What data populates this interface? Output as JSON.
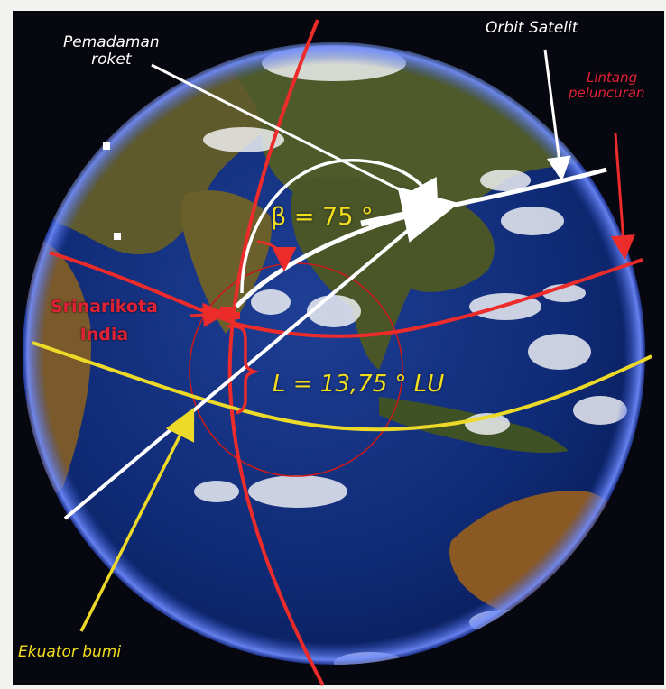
{
  "labels": {
    "rocket_cutoff_line1": "Pemadaman",
    "rocket_cutoff_line2": "roket",
    "satellite_orbit": "Orbit Satelit",
    "launch_latitude_line1": "Lintang",
    "launch_latitude_line2": "peluncuran",
    "site_name_line1": "Srinarikota",
    "site_name_line2": "India",
    "angle_beta": "β = 75 °",
    "latitude_value": "L = 13,75 ° LU",
    "earth_equator": "Ekuator bumi"
  },
  "icons": {
    "globe": "earth-globe-icon",
    "launch_site": "launch-site-marker-icon"
  },
  "colors": {
    "background": "#f2f2ef",
    "space": "#07070f",
    "ocean": "#0d2a74",
    "atmosphere_rim": "#4f6fe0",
    "land": "#5e5a2c",
    "cloud": "#f4f5f8",
    "meridian_red": "#ec2b2b",
    "equator_yellow": "#ecd928",
    "orbit_white": "#ffffff",
    "label_white": "#ffffff",
    "label_red": "#e02236",
    "label_yellow": "#f3de1e"
  }
}
